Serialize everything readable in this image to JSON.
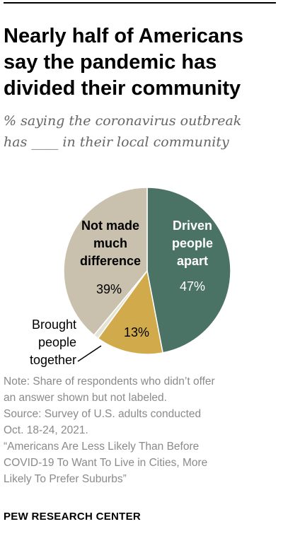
{
  "header": {
    "title": "Nearly half of Americans say the pandemic has divided their community",
    "subtitle_lines": [
      "% saying the coronavirus outbreak",
      "has ____ in their local community"
    ]
  },
  "chart_data": {
    "type": "pie",
    "title": "Nearly half of Americans say the pandemic has divided their community",
    "subtitle": "% saying the coronavirus outbreak has ____ in their local community",
    "slices": [
      {
        "label": "Driven people apart",
        "label_lines": [
          "Driven",
          "people",
          "apart"
        ],
        "value": 47,
        "value_label": "47%",
        "color": "#4a7366",
        "text_color": "#ffffff",
        "label_color": "#ffffff"
      },
      {
        "label": "Brought people together",
        "label_lines": [
          "Brought",
          "people",
          "together"
        ],
        "value": 13,
        "value_label": "13%",
        "color": "#d1aa4c",
        "text_color": "#000000",
        "label_color": "#000000"
      },
      {
        "label": "",
        "label_lines": [],
        "value": 1,
        "value_label": "",
        "color": "#e5e2d6",
        "text_color": "#000000",
        "label_color": "#000000"
      },
      {
        "label": "Not made much difference",
        "label_lines": [
          "Not made",
          "much",
          "difference"
        ],
        "value": 39,
        "value_label": "39%",
        "color": "#c9c1ad",
        "text_color": "#000000",
        "label_color": "#000000"
      }
    ]
  },
  "notes": [
    "Note: Share of respondents who didn’t offer",
    "an answer shown but not labeled.",
    "Source: Survey of U.S. adults conducted",
    "Oct. 18-24, 2021.",
    "“Americans Are Less Likely Than Before",
    "COVID-19 To Want To Live in Cities, More",
    "Likely To Prefer Suburbs”"
  ],
  "footer": {
    "brand": "PEW RESEARCH CENTER"
  }
}
